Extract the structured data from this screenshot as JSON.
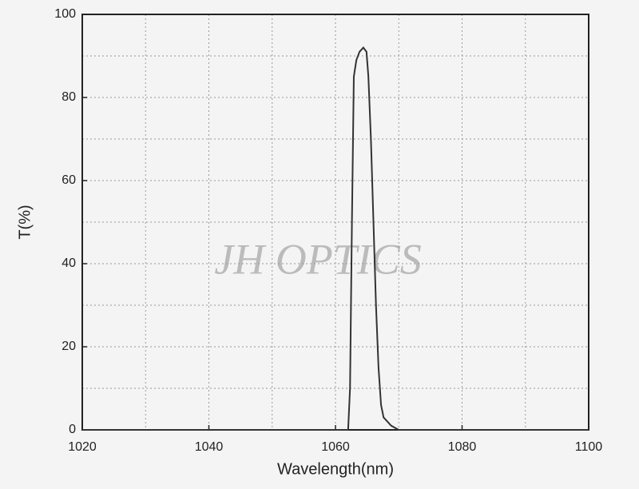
{
  "chart_data": {
    "type": "line",
    "xlabel": "Wavelength(nm)",
    "ylabel": "T(%)",
    "annotation": "JH OPTICS",
    "x": [
      1020,
      1040,
      1060,
      1062,
      1062.3,
      1062.6,
      1062.9,
      1063.3,
      1063.8,
      1064.4,
      1064.9,
      1065.2,
      1065.6,
      1066.0,
      1066.4,
      1066.8,
      1067.2,
      1067.6,
      1068.2,
      1068.8,
      1070,
      1080,
      1100
    ],
    "series": [
      {
        "color": "#333333",
        "values": [
          0,
          0,
          0,
          0,
          10,
          50,
          85,
          89,
          91,
          92,
          91,
          85,
          70,
          50,
          30,
          15,
          6,
          3,
          2,
          1,
          0,
          0,
          0
        ]
      }
    ],
    "xlim": [
      1020,
      1100
    ],
    "ylim": [
      0,
      100
    ],
    "xticks": [
      1020,
      1040,
      1060,
      1080,
      1100
    ],
    "yticks": [
      0,
      20,
      40,
      60,
      80,
      100
    ],
    "minor_xticks": [
      1030,
      1050,
      1070,
      1090
    ],
    "minor_yticks": [
      10,
      30,
      50,
      70,
      90
    ],
    "grid": true
  }
}
